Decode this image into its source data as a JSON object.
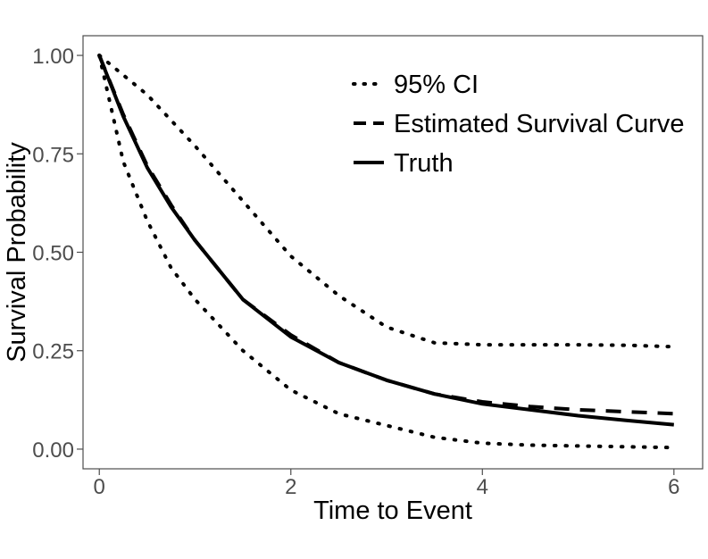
{
  "chart_data": {
    "type": "line",
    "xlabel": "Time to Event",
    "ylabel": "Survival Probability",
    "xlim": [
      -0.17,
      6.3
    ],
    "ylim": [
      -0.05,
      1.05
    ],
    "x_ticks": [
      0,
      2,
      4,
      6
    ],
    "x_tick_labels": [
      "0",
      "2",
      "4",
      "6"
    ],
    "y_ticks": [
      0,
      0.25,
      0.5,
      0.75,
      1.0
    ],
    "y_tick_labels": [
      "0.00",
      "0.25",
      "0.50",
      "0.75",
      "1.00"
    ],
    "grid": false,
    "legend_position": "top-right",
    "colors": {
      "line": "#000000",
      "frame": "#4d4d4d",
      "tick_text": "#4d4d4d"
    },
    "series": [
      {
        "name": "95% CI",
        "style": "dotted",
        "x": [
          0,
          0.5,
          1,
          1.5,
          2,
          2.5,
          3,
          3.5,
          4,
          4.5,
          5,
          5.5,
          6
        ],
        "y": [
          1.0,
          0.9,
          0.77,
          0.63,
          0.49,
          0.39,
          0.31,
          0.27,
          0.265,
          0.265,
          0.265,
          0.264,
          0.26
        ]
      },
      {
        "name": "",
        "style": "dotted",
        "x": [
          0,
          0.25,
          0.5,
          0.75,
          1,
          1.5,
          2,
          2.5,
          3,
          3.5,
          4,
          4.5,
          5,
          5.5,
          6
        ],
        "y": [
          1.0,
          0.73,
          0.58,
          0.46,
          0.38,
          0.25,
          0.15,
          0.09,
          0.06,
          0.03,
          0.015,
          0.01,
          0.008,
          0.006,
          0.004
        ]
      },
      {
        "name": "Estimated Survival Curve",
        "style": "dashed",
        "x": [
          0,
          0.25,
          0.5,
          0.75,
          1,
          1.5,
          2,
          2.5,
          3,
          3.5,
          4,
          4.5,
          5,
          5.5,
          6
        ],
        "y": [
          1.0,
          0.85,
          0.72,
          0.62,
          0.53,
          0.38,
          0.29,
          0.22,
          0.175,
          0.14,
          0.12,
          0.108,
          0.1,
          0.095,
          0.09
        ]
      },
      {
        "name": "Truth",
        "style": "solid",
        "x": [
          0,
          0.25,
          0.5,
          0.75,
          1,
          1.5,
          2,
          2.5,
          3,
          3.5,
          4,
          4.5,
          5,
          5.5,
          6
        ],
        "y": [
          1.0,
          0.845,
          0.715,
          0.615,
          0.53,
          0.38,
          0.285,
          0.22,
          0.175,
          0.14,
          0.115,
          0.1,
          0.085,
          0.073,
          0.062
        ]
      }
    ]
  }
}
